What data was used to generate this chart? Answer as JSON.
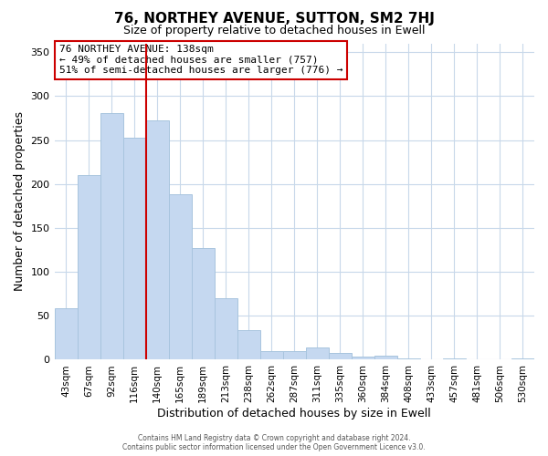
{
  "title": "76, NORTHEY AVENUE, SUTTON, SM2 7HJ",
  "subtitle": "Size of property relative to detached houses in Ewell",
  "xlabel": "Distribution of detached houses by size in Ewell",
  "ylabel": "Number of detached properties",
  "bar_labels": [
    "43sqm",
    "67sqm",
    "92sqm",
    "116sqm",
    "140sqm",
    "165sqm",
    "189sqm",
    "213sqm",
    "238sqm",
    "262sqm",
    "287sqm",
    "311sqm",
    "335sqm",
    "360sqm",
    "384sqm",
    "408sqm",
    "433sqm",
    "457sqm",
    "481sqm",
    "506sqm",
    "530sqm"
  ],
  "bar_values": [
    59,
    210,
    281,
    253,
    272,
    188,
    127,
    70,
    34,
    10,
    10,
    14,
    8,
    4,
    5,
    1,
    0,
    1,
    0,
    0,
    2
  ],
  "bar_color": "#c5d8f0",
  "bar_edgecolor": "#a8c4de",
  "vline_x_index": 4,
  "vline_color": "#cc0000",
  "ylim": [
    0,
    360
  ],
  "yticks": [
    0,
    50,
    100,
    150,
    200,
    250,
    300,
    350
  ],
  "annotation_title": "76 NORTHEY AVENUE: 138sqm",
  "annotation_line1": "← 49% of detached houses are smaller (757)",
  "annotation_line2": "51% of semi-detached houses are larger (776) →",
  "annotation_box_color": "#ffffff",
  "annotation_box_edgecolor": "#cc0000",
  "footer1": "Contains HM Land Registry data © Crown copyright and database right 2024.",
  "footer2": "Contains public sector information licensed under the Open Government Licence v3.0.",
  "background_color": "#ffffff",
  "grid_color": "#c8d8ea"
}
